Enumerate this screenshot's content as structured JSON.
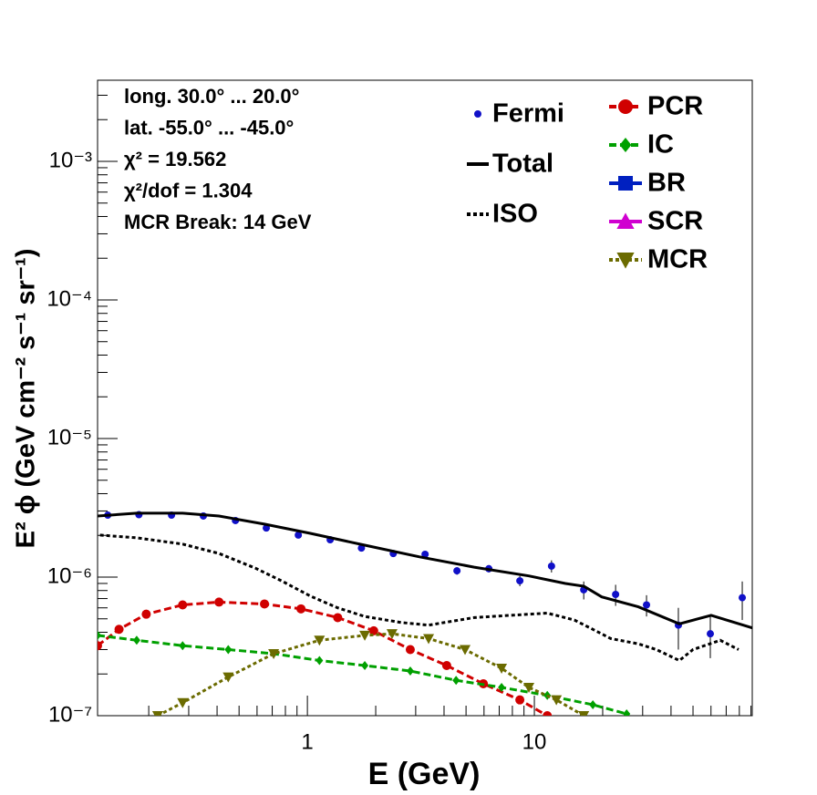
{
  "chart_data": {
    "type": "line",
    "annotations": [
      "long. 30.0° ... 20.0°",
      "lat. -55.0° ... -45.0°",
      "χ² = 19.562",
      "χ²/dof = 1.304",
      "MCR Break: 14 GeV"
    ],
    "x_label": "E (GeV)",
    "y_label": "E² ϕ (GeV cm⁻² s⁻¹ sr⁻¹)",
    "xlog": true,
    "ylog": true,
    "xlim": [
      0.119,
      91.2
    ],
    "ylim": [
      1e-07,
      0.00385
    ],
    "xticks": [
      1,
      10
    ],
    "yticks": [
      {
        "value": 1e-07,
        "label": "10⁻⁷"
      },
      {
        "value": 1e-06,
        "label": "10⁻⁶"
      },
      {
        "value": 1e-05,
        "label": "10⁻⁵"
      },
      {
        "value": 0.0001,
        "label": "10⁻⁴"
      },
      {
        "value": 0.001,
        "label": "10⁻³"
      }
    ],
    "series": [
      {
        "name": "Fermi",
        "color": "#1010c8",
        "line": "none",
        "marker": "dot",
        "x": [
          0.132,
          0.181,
          0.252,
          0.348,
          0.482,
          0.659,
          0.912,
          1.26,
          1.73,
          2.39,
          3.3,
          4.56,
          6.3,
          8.63,
          11.9,
          16.5,
          22.8,
          31.2,
          43.1,
          59.6,
          82.4
        ],
        "values": [
          2.8e-06,
          2.82e-06,
          2.8e-06,
          2.76e-06,
          2.56e-06,
          2.26e-06,
          2.01e-06,
          1.86e-06,
          1.62e-06,
          1.48e-06,
          1.46e-06,
          1.11e-06,
          1.15e-06,
          9.4e-07,
          1.2e-06,
          8.1e-07,
          7.5e-07,
          6.3e-07,
          4.5e-07,
          3.9e-07,
          7.1e-07
        ],
        "errors": [
          4e-08,
          4e-08,
          4e-08,
          4e-08,
          4e-08,
          4e-08,
          4e-08,
          4e-08,
          4e-08,
          4e-08,
          5e-08,
          7e-08,
          7e-08,
          8e-08,
          1.2e-07,
          1.2e-07,
          1.3e-07,
          1.1e-07,
          1.5e-07,
          1.3e-07,
          2.2e-07
        ]
      },
      {
        "name": "Total",
        "color": "#000000",
        "line": "solid",
        "marker": "none",
        "x": [
          0.119,
          0.177,
          0.282,
          0.408,
          0.647,
          1.03,
          1.79,
          3.12,
          5.43,
          9.46,
          13.7,
          16.5,
          19.8,
          28.7,
          43.5,
          60.1,
          91.2
        ],
        "values": [
          2.76e-06,
          2.89e-06,
          2.89e-06,
          2.76e-06,
          2.41e-06,
          2.07e-06,
          1.7e-06,
          1.4e-06,
          1.18e-06,
          1.02e-06,
          9e-07,
          8.6e-07,
          7.2e-07,
          6.1e-07,
          4.6e-07,
          5.3e-07,
          4.3e-07
        ]
      },
      {
        "name": "ISO",
        "color": "#000000",
        "line": "dotted",
        "marker": "none",
        "x": [
          0.122,
          0.177,
          0.282,
          0.408,
          0.59,
          0.779,
          1.03,
          1.36,
          1.79,
          2.59,
          3.42,
          5.43,
          7.87,
          11.4,
          15.0,
          18.1,
          21.7,
          28.7,
          34.5,
          43.5,
          50.0,
          65.9,
          79.4
        ],
        "values": [
          2.01e-06,
          1.92e-06,
          1.73e-06,
          1.48e-06,
          1.16e-06,
          9.3e-07,
          7.3e-07,
          6e-07,
          5.2e-07,
          4.7e-07,
          4.5e-07,
          5.1e-07,
          5.3e-07,
          5.5e-07,
          4.9e-07,
          4.2e-07,
          3.6e-07,
          3.3e-07,
          3e-07,
          2.5e-07,
          3e-07,
          3.5e-07,
          3e-07
        ]
      },
      {
        "name": "PCR",
        "color": "#d00000",
        "line": "dashed",
        "marker": "circle",
        "x": [
          0.119,
          0.148,
          0.195,
          0.282,
          0.408,
          0.647,
          0.937,
          1.36,
          1.96,
          2.84,
          4.11,
          5.96,
          8.63,
          11.4
        ],
        "values": [
          3.2e-07,
          4.2e-07,
          5.4e-07,
          6.3e-07,
          6.6e-07,
          6.4e-07,
          5.9e-07,
          5.1e-07,
          4.1e-07,
          3e-07,
          2.3e-07,
          1.7e-07,
          1.3e-07,
          1e-07
        ]
      },
      {
        "name": "IC",
        "color": "#00a000",
        "line": "dashed",
        "marker": "diamond",
        "x": [
          0.119,
          0.177,
          0.282,
          0.448,
          0.71,
          1.13,
          1.79,
          2.84,
          4.52,
          7.17,
          11.4,
          18.1,
          25.5
        ],
        "values": [
          3.8e-07,
          3.5e-07,
          3.2e-07,
          3e-07,
          2.8e-07,
          2.5e-07,
          2.3e-07,
          2.1e-07,
          1.8e-07,
          1.6e-07,
          1.4e-07,
          1.2e-07,
          1.03e-07
        ]
      },
      {
        "name": "BR",
        "color": "#0020c0",
        "line": "solid",
        "marker": "square",
        "x": [],
        "values": []
      },
      {
        "name": "SCR",
        "color": "#d000d0",
        "line": "solid",
        "marker": "triangle-up",
        "x": [],
        "values": []
      },
      {
        "name": "MCR",
        "color": "#6b6b00",
        "line": "dotted",
        "marker": "triangle-down",
        "x": [
          0.219,
          0.282,
          0.448,
          0.71,
          1.13,
          1.79,
          2.36,
          3.42,
          4.95,
          7.17,
          9.46,
          12.5,
          16.5
        ],
        "values": [
          1e-07,
          1.24e-07,
          1.9e-07,
          2.8e-07,
          3.5e-07,
          3.8e-07,
          3.9e-07,
          3.6e-07,
          3e-07,
          2.2e-07,
          1.6e-07,
          1.3e-07,
          1e-07
        ]
      }
    ]
  }
}
